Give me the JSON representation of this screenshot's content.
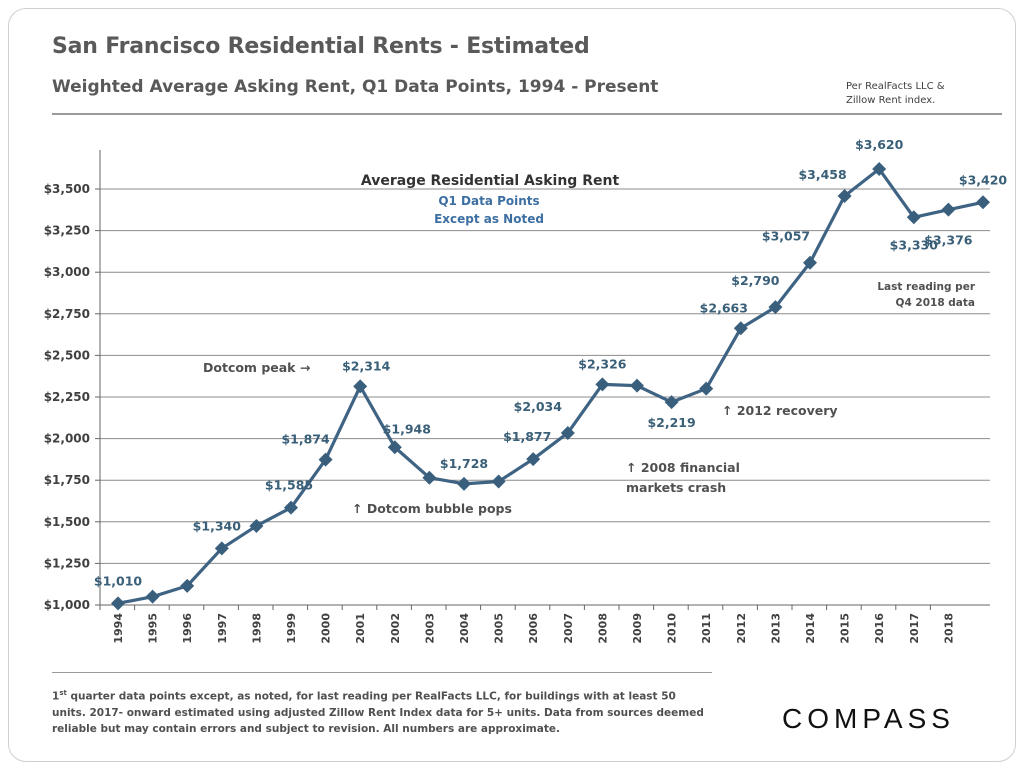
{
  "header": {
    "title": "San Francisco Residential Rents - Estimated",
    "subtitle": "Weighted Average Asking Rent, Q1 Data Points,  1994 - Present",
    "source_line1": "Per RealFacts LLC &",
    "source_line2": "Zillow Rent index."
  },
  "footer": {
    "footnote_sup": "st",
    "footnote_pre": "1",
    "footnote_text": " quarter data points except, as noted, for last reading per RealFacts LLC, for buildings with at least 50 units. 2017- onward estimated using adjusted Zillow Rent Index data for 5+ units. Data from sources deemed reliable but may contain errors and subject to revision. All numbers are approximate.",
    "logo": "COMPASS"
  },
  "chart_data": {
    "type": "line",
    "inner_title": "Average Residential Asking Rent",
    "inner_subtitle_1": "Q1 Data Points",
    "inner_subtitle_2": "Except as Noted",
    "x_categories": [
      "1994",
      "1995",
      "1996",
      "1997",
      "1998",
      "1999",
      "2000",
      "2001",
      "2002",
      "2003",
      "2004",
      "2005",
      "2006",
      "2007",
      "2008",
      "2009",
      "2010",
      "2011",
      "2012",
      "2013",
      "2014",
      "2015",
      "2016",
      "2017",
      "2018"
    ],
    "points": [
      {
        "x": 0,
        "y": 1010,
        "label": "$1,010"
      },
      {
        "x": 1,
        "y": 1050,
        "label": ""
      },
      {
        "x": 2,
        "y": 1115,
        "label": ""
      },
      {
        "x": 3,
        "y": 1340,
        "label": "$1,340"
      },
      {
        "x": 4,
        "y": 1475,
        "label": ""
      },
      {
        "x": 5,
        "y": 1585,
        "label": "$1,585"
      },
      {
        "x": 6,
        "y": 1874,
        "label": "$1,874"
      },
      {
        "x": 7,
        "y": 2314,
        "label": "$2,314"
      },
      {
        "x": 8,
        "y": 1948,
        "label": "$1,948"
      },
      {
        "x": 9,
        "y": 1765,
        "label": ""
      },
      {
        "x": 10,
        "y": 1728,
        "label": "$1,728"
      },
      {
        "x": 11,
        "y": 1742,
        "label": ""
      },
      {
        "x": 12,
        "y": 1877,
        "label": "$1,877"
      },
      {
        "x": 13,
        "y": 2034,
        "label": "$2,034"
      },
      {
        "x": 14,
        "y": 2326,
        "label": "$2,326"
      },
      {
        "x": 15,
        "y": 2318,
        "label": ""
      },
      {
        "x": 16,
        "y": 2219,
        "label": "$2,219"
      },
      {
        "x": 17,
        "y": 2300,
        "label": ""
      },
      {
        "x": 18,
        "y": 2663,
        "label": "$2,663"
      },
      {
        "x": 19,
        "y": 2790,
        "label": "$2,790"
      },
      {
        "x": 20,
        "y": 3057,
        "label": "$3,057"
      },
      {
        "x": 21,
        "y": 3458,
        "label": "$3,458"
      },
      {
        "x": 22,
        "y": 3620,
        "label": "$3,620"
      },
      {
        "x": 23,
        "y": 3330,
        "label": "$3,330"
      },
      {
        "x": 24,
        "y": 3376,
        "label": "$3,376"
      },
      {
        "x": 25,
        "y": 3420,
        "label": "$3,420"
      }
    ],
    "y_ticks": [
      1000,
      1250,
      1500,
      1750,
      2000,
      2250,
      2500,
      2750,
      3000,
      3250,
      3500
    ],
    "y_tick_labels": [
      "$1,000",
      "$1,250",
      "$1,500",
      "$1,750",
      "$2,000",
      "$2,250",
      "$2,500",
      "$2,750",
      "$3,000",
      "$3,250",
      "$3,500"
    ],
    "ylim": [
      1000,
      3750
    ],
    "annotations": {
      "dotcom_peak": "Dotcom peak →",
      "dotcom_pops": "↑ Dotcom bubble pops",
      "crash_line1": "↑ 2008 financial",
      "crash_line2": "markets crash",
      "recovery": "↑ 2012 recovery",
      "last_reading_1": "Last reading per",
      "last_reading_2": "Q4 2018 data"
    },
    "colors": {
      "line": "#3f6383",
      "marker": "#3a5f7d",
      "grid": "#8c8c8c"
    }
  }
}
